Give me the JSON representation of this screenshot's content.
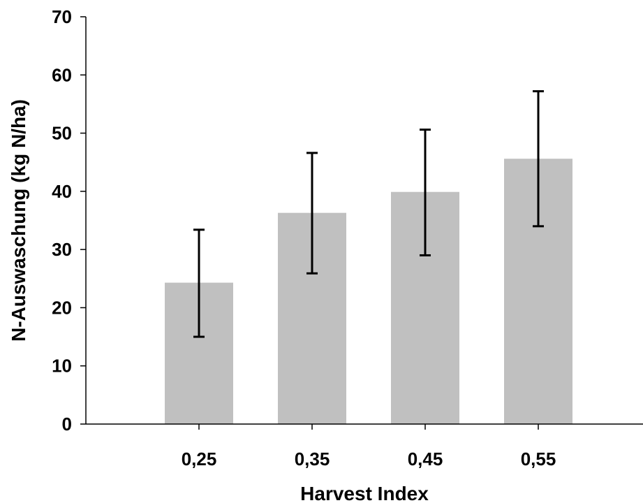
{
  "chart_data": {
    "type": "bar",
    "categories": [
      "0,25",
      "0,35",
      "0,45",
      "0,55"
    ],
    "values": [
      24.3,
      36.3,
      39.9,
      45.6
    ],
    "error_low": [
      15.0,
      25.9,
      29.0,
      34.0
    ],
    "error_high": [
      33.4,
      46.6,
      50.6,
      57.2
    ],
    "xlabel": "Harvest Index",
    "ylabel": "N-Auswaschung (kg N/ha)",
    "ylim": [
      0,
      70
    ],
    "yticks": [
      "0",
      "10",
      "20",
      "30",
      "40",
      "50",
      "60",
      "70"
    ],
    "grid": false,
    "legend": "none",
    "bar_color": "#c0c0c0",
    "axis_color": "#000000"
  }
}
